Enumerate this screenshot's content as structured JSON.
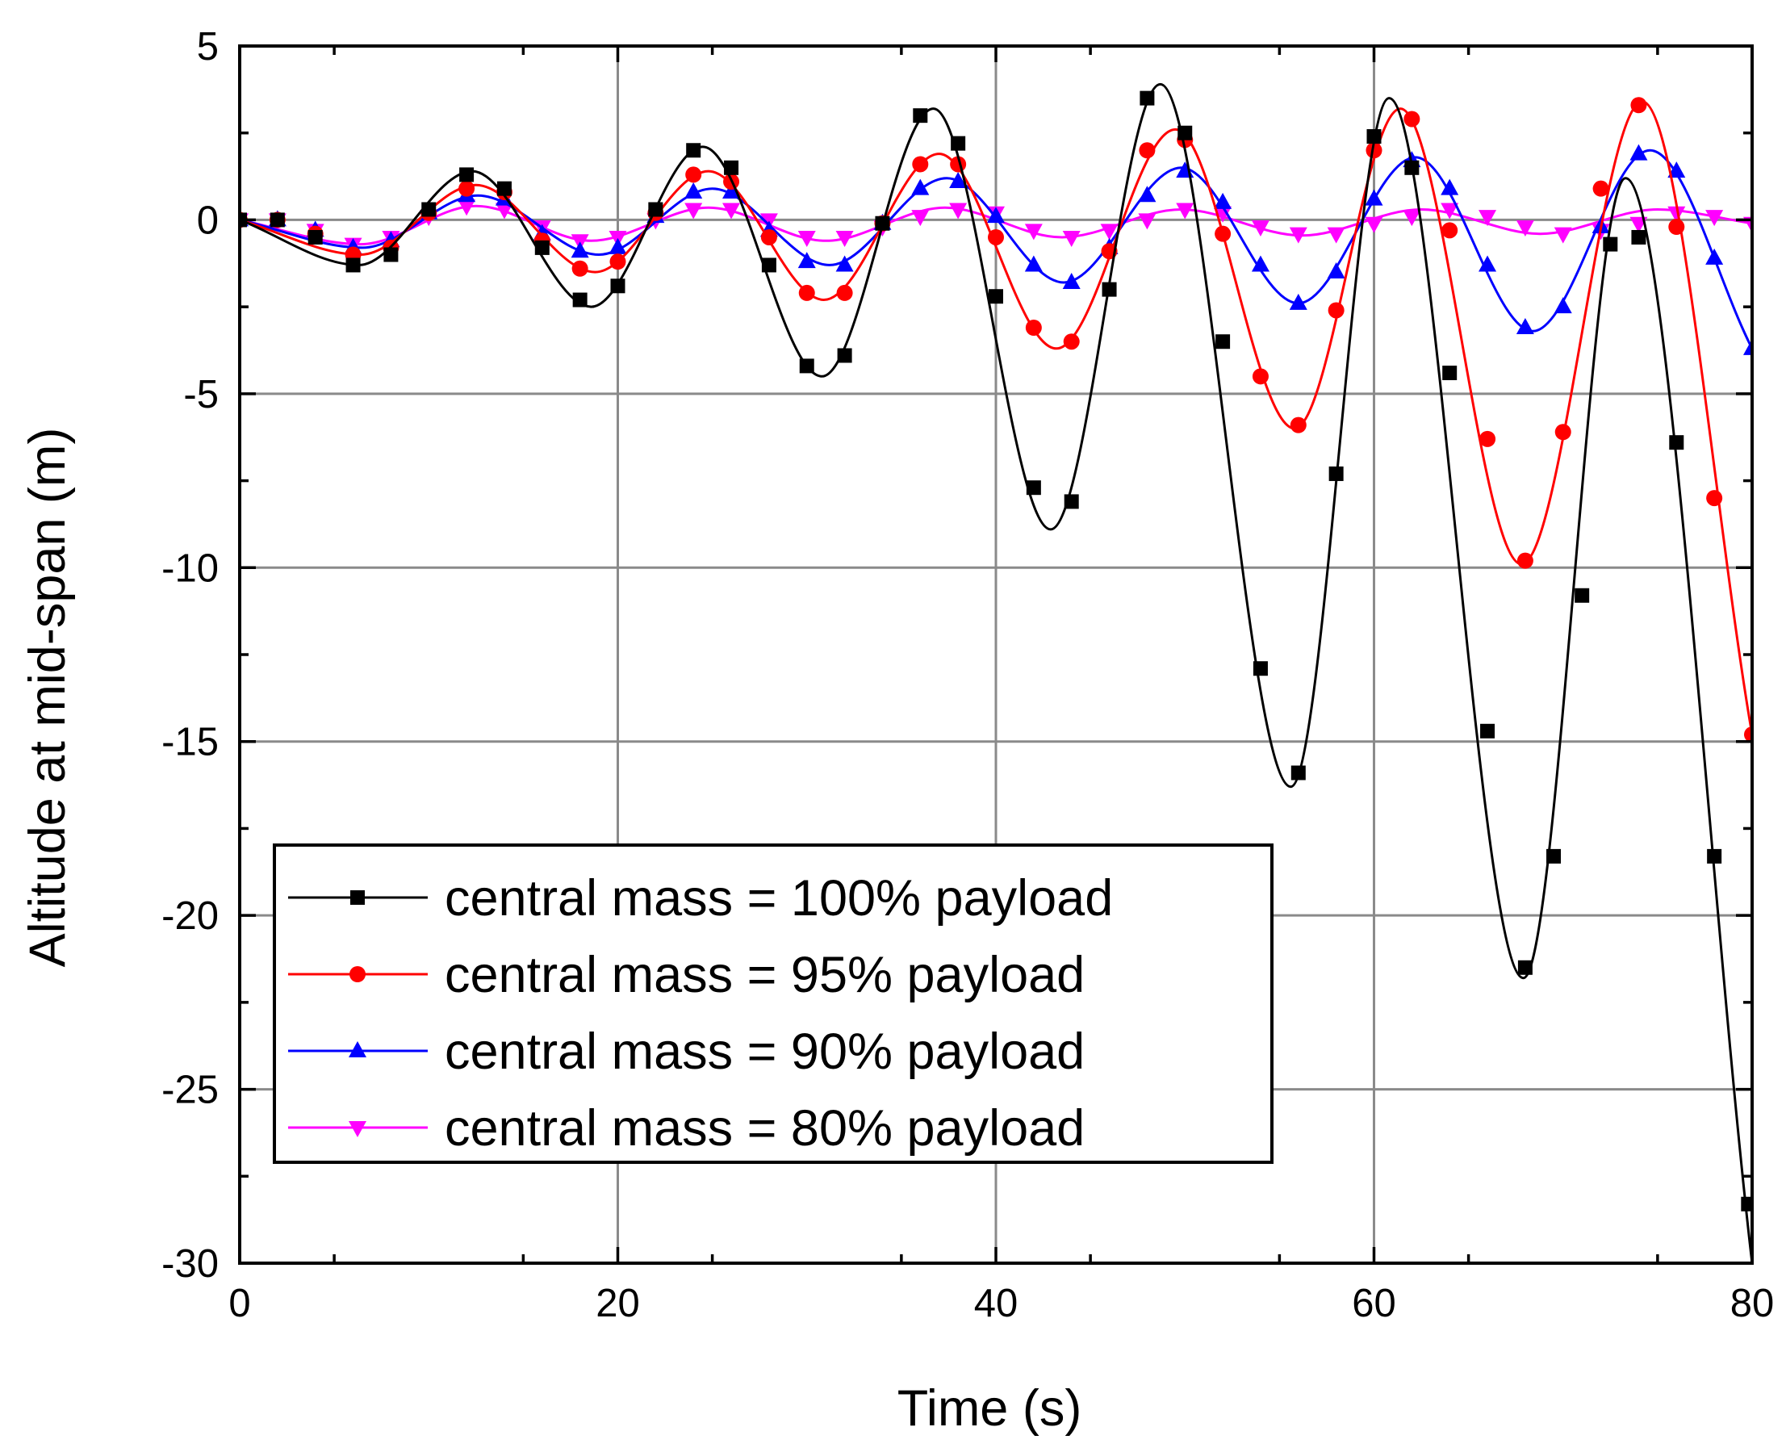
{
  "chart_data": {
    "type": "line",
    "title": "",
    "xlabel": "Time (s)",
    "ylabel": "Altitude at mid-span (m)",
    "xlim": [
      0,
      80
    ],
    "ylim": [
      -30,
      5
    ],
    "xticks": [
      0,
      20,
      40,
      60,
      80
    ],
    "xtick_labels": [
      "0",
      "20",
      "40",
      "60",
      "80"
    ],
    "yticks": [
      5,
      0,
      -5,
      -10,
      -15,
      -20,
      -25,
      -30
    ],
    "ytick_labels": [
      "5",
      "0",
      "-5",
      "-10",
      "-15",
      "-20",
      "-25",
      "-30"
    ],
    "grid": true,
    "legend_position": "bottom-left",
    "series": [
      {
        "name": "central mass = 100% payload",
        "color": "#000000",
        "marker": "square",
        "x": [
          0,
          2,
          4,
          6,
          8,
          10,
          12,
          14,
          16,
          18,
          20,
          22,
          24,
          26,
          28,
          30,
          32,
          34,
          36,
          38,
          40,
          42,
          44,
          46,
          48,
          50,
          52,
          54,
          56,
          58,
          60,
          62,
          64,
          66,
          68,
          69.5,
          71,
          72.5,
          74,
          76,
          78,
          79.8
        ],
        "values": [
          0,
          0,
          -0.5,
          -1.3,
          -1.0,
          0.3,
          1.3,
          0.9,
          -0.8,
          -2.3,
          -1.9,
          0.3,
          2.0,
          1.5,
          -1.3,
          -4.2,
          -3.9,
          -0.1,
          3.0,
          2.2,
          -2.2,
          -7.7,
          -8.1,
          -2.0,
          3.5,
          2.5,
          -3.5,
          -12.9,
          -15.9,
          -7.3,
          2.4,
          1.5,
          -4.4,
          -14.7,
          -21.5,
          -18.3,
          -10.8,
          -0.7,
          -0.5,
          -6.4,
          -18.3,
          -28.3
        ],
        "curve_x": [
          0,
          6.3,
          12.3,
          18.6,
          24.5,
          30.8,
          36.7,
          42.9,
          48.7,
          55.6,
          60.8,
          67.9,
          73.3,
          80
        ],
        "curve_y": [
          0,
          -1.3,
          1.4,
          -2.5,
          2.1,
          -4.5,
          3.2,
          -8.9,
          3.9,
          -16.3,
          3.5,
          -21.8,
          1.2,
          -30
        ]
      },
      {
        "name": "central mass = 95% payload",
        "color": "#ff0000",
        "marker": "circle",
        "x": [
          0,
          2,
          4,
          6,
          8,
          10,
          12,
          14,
          16,
          18,
          20,
          22,
          24,
          26,
          28,
          30,
          32,
          34,
          36,
          38,
          40,
          42,
          44,
          46,
          48,
          50,
          52,
          54,
          56,
          58,
          60,
          62,
          64,
          66,
          68,
          70,
          72,
          74,
          76,
          78,
          80
        ],
        "values": [
          0,
          0,
          -0.4,
          -1.0,
          -0.8,
          0.2,
          0.9,
          0.8,
          -0.6,
          -1.4,
          -1.2,
          0.2,
          1.3,
          1.1,
          -0.5,
          -2.1,
          -2.1,
          -0.1,
          1.6,
          1.6,
          -0.5,
          -3.1,
          -3.5,
          -0.9,
          2.0,
          2.3,
          -0.4,
          -4.5,
          -5.9,
          -2.6,
          2.0,
          2.9,
          -0.3,
          -6.3,
          -9.8,
          -6.1,
          0.9,
          3.3,
          -0.2,
          -8.0,
          -14.8
        ],
        "curve_x": [
          0,
          6.4,
          12.5,
          18.8,
          24.8,
          30.9,
          37,
          43.2,
          49.5,
          55.8,
          61.4,
          67.8,
          74.2,
          80
        ],
        "curve_y": [
          0,
          -1.0,
          1.0,
          -1.5,
          1.4,
          -2.3,
          1.9,
          -3.7,
          2.6,
          -6.0,
          3.2,
          -9.9,
          3.4,
          -14.8
        ]
      },
      {
        "name": "central mass = 90% payload",
        "color": "#0000ff",
        "marker": "triangle-up",
        "x": [
          0,
          2,
          4,
          6,
          8,
          10,
          12,
          14,
          16,
          18,
          20,
          22,
          24,
          26,
          28,
          30,
          32,
          34,
          36,
          38,
          40,
          42,
          44,
          46,
          48,
          50,
          52,
          54,
          56,
          58,
          60,
          62,
          64,
          66,
          68,
          70,
          72,
          74,
          76,
          78,
          80
        ],
        "values": [
          0,
          0,
          -0.3,
          -0.8,
          -0.6,
          0.2,
          0.7,
          0.6,
          -0.4,
          -0.9,
          -0.8,
          0.1,
          0.8,
          0.8,
          -0.3,
          -1.2,
          -1.3,
          -0.1,
          0.9,
          1.1,
          0.1,
          -1.3,
          -1.8,
          -0.8,
          0.7,
          1.4,
          0.5,
          -1.3,
          -2.4,
          -1.5,
          0.6,
          1.7,
          0.9,
          -1.3,
          -3.1,
          -2.5,
          -0.2,
          1.9,
          1.4,
          -1.1,
          -3.7
        ],
        "curve_x": [
          0,
          6.5,
          12.6,
          19,
          25,
          31.2,
          37.4,
          43.6,
          49.8,
          56,
          62.2,
          68.4,
          74.6,
          80
        ],
        "curve_y": [
          0,
          -0.8,
          0.7,
          -1.0,
          0.9,
          -1.3,
          1.2,
          -1.8,
          1.5,
          -2.4,
          1.8,
          -3.2,
          2.0,
          -3.7
        ]
      },
      {
        "name": "central mass = 80% payload",
        "color": "#ff00ff",
        "marker": "triangle-down",
        "x": [
          0,
          2,
          4,
          6,
          8,
          10,
          12,
          14,
          16,
          18,
          20,
          22,
          24,
          26,
          28,
          30,
          32,
          34,
          36,
          38,
          40,
          42,
          44,
          46,
          48,
          50,
          52,
          54,
          56,
          58,
          60,
          62,
          64,
          66,
          68,
          70,
          72,
          74,
          76,
          78,
          80
        ],
        "values": [
          0,
          0,
          -0.3,
          -0.7,
          -0.5,
          0.1,
          0.4,
          0.3,
          -0.2,
          -0.6,
          -0.5,
          0.0,
          0.3,
          0.3,
          0.0,
          -0.5,
          -0.5,
          -0.2,
          0.1,
          0.3,
          0.2,
          -0.3,
          -0.5,
          -0.3,
          0.0,
          0.3,
          0.2,
          -0.2,
          -0.4,
          -0.4,
          -0.1,
          0.1,
          0.3,
          0.1,
          -0.2,
          -0.4,
          -0.3,
          -0.1,
          0.2,
          0.1,
          -0.1
        ],
        "curve_x": [
          0,
          6.4,
          12.5,
          18.6,
          24.8,
          31,
          37.3,
          43.5,
          49.8,
          56.2,
          62.5,
          68.8,
          75,
          80
        ],
        "curve_y": [
          0,
          -0.7,
          0.4,
          -0.6,
          0.35,
          -0.6,
          0.35,
          -0.5,
          0.3,
          -0.45,
          0.3,
          -0.4,
          0.3,
          -0.1
        ]
      }
    ]
  }
}
